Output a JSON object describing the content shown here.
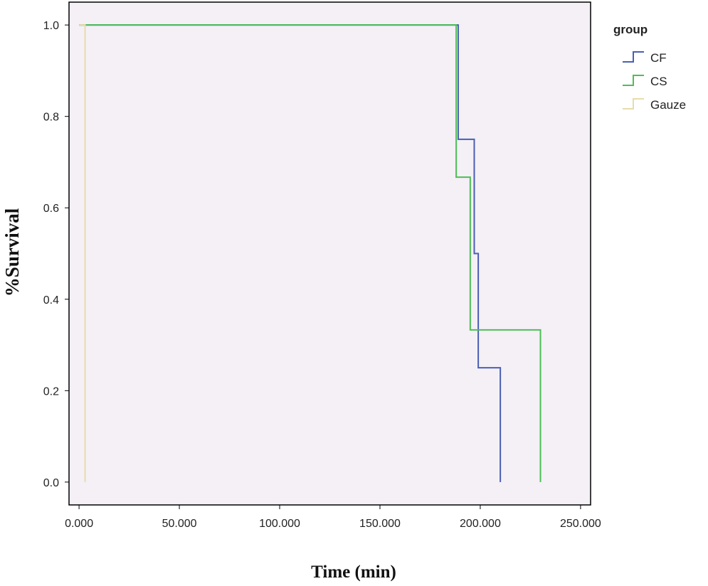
{
  "chart_data": {
    "type": "line",
    "step": true,
    "xlabel": "Time (min)",
    "ylabel": "%Survival",
    "xlim": [
      -5,
      255
    ],
    "ylim": [
      -0.05,
      1.05
    ],
    "x_ticks": [
      0,
      50,
      100,
      150,
      200,
      250
    ],
    "x_tick_labels": [
      "0.000",
      "50.000",
      "100.000",
      "150.000",
      "200.000",
      "250.000"
    ],
    "y_ticks": [
      0.0,
      0.2,
      0.4,
      0.6,
      0.8,
      1.0
    ],
    "y_tick_labels": [
      "0.0",
      "0.2",
      "0.4",
      "0.6",
      "0.8",
      "1.0"
    ],
    "grid": false,
    "background": "#f4f0f6",
    "legend": {
      "title": "group",
      "position": "outside-right-top"
    },
    "series": [
      {
        "name": "CF",
        "color": "#4a5fb4",
        "x": [
          0,
          189,
          197,
          199,
          200,
          210
        ],
        "y": [
          1.0,
          0.75,
          0.5,
          0.25,
          0.25,
          0.0
        ]
      },
      {
        "name": "CS",
        "color": "#4cbf55",
        "x": [
          0,
          188,
          195,
          230
        ],
        "y": [
          1.0,
          0.667,
          0.333,
          0.0
        ]
      },
      {
        "name": "Gauze",
        "color": "#e8dcaa",
        "x": [
          0,
          3
        ],
        "y": [
          1.0,
          0.0
        ]
      }
    ]
  }
}
